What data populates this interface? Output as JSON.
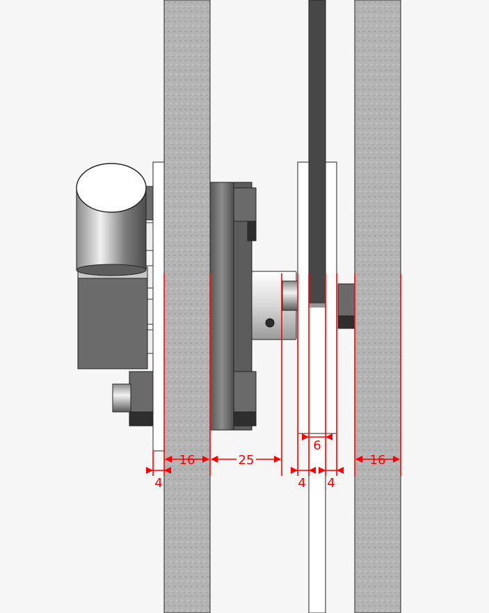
{
  "diagram": {
    "dimensions": {
      "plate_left_thickness": "4",
      "board_left_thickness": "16",
      "gear_clearance": "25",
      "belt_width": "6",
      "pulley_flange_left": "4",
      "pulley_flange_right": "4",
      "board_right_thickness": "16"
    },
    "colors": {
      "background": "#f6f6f6",
      "board": "#b9b9b9",
      "dimension": "#ff0000",
      "belt": "#4a4a4a",
      "dark_part": "#3c3c3c",
      "mid_part": "#6e6e6e"
    }
  }
}
